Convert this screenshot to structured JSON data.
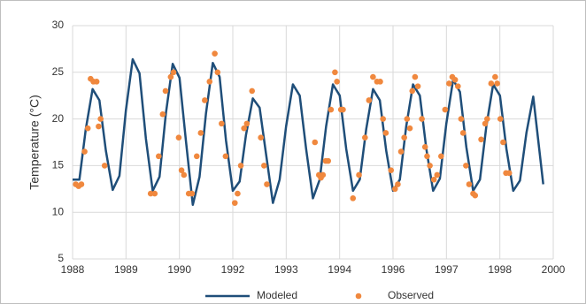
{
  "chart_data": {
    "type": "line",
    "ylabel": "Temperature (°C)",
    "xlim": [
      1988,
      2000
    ],
    "xticks": [
      {
        "value": 1988,
        "label": "1988"
      },
      {
        "value": 1989.333,
        "label": "1989"
      },
      {
        "value": 1990.667,
        "label": "1990"
      },
      {
        "value": 1992,
        "label": "1992"
      },
      {
        "value": 1993.333,
        "label": "1993"
      },
      {
        "value": 1994.667,
        "label": "1994"
      },
      {
        "value": 1996,
        "label": "1996"
      },
      {
        "value": 1997.333,
        "label": "1997"
      },
      {
        "value": 1998.667,
        "label": "1998"
      },
      {
        "value": 2000,
        "label": "2000"
      }
    ],
    "ylim": [
      5,
      30
    ],
    "yticks": [
      5,
      10,
      15,
      20,
      25,
      30
    ],
    "grid": true,
    "legend": "bottom",
    "series": [
      {
        "name": "Modeled",
        "type": "line",
        "color": "#1f4e79",
        "x": [
          1988.0,
          1988.17,
          1988.33,
          1988.5,
          1988.67,
          1988.83,
          1989.0,
          1989.17,
          1989.33,
          1989.5,
          1989.67,
          1989.83,
          1990.0,
          1990.17,
          1990.33,
          1990.5,
          1990.67,
          1990.83,
          1991.0,
          1991.17,
          1991.33,
          1991.5,
          1991.67,
          1991.83,
          1992.0,
          1992.17,
          1992.33,
          1992.5,
          1992.67,
          1992.83,
          1993.0,
          1993.17,
          1993.33,
          1993.5,
          1993.67,
          1993.83,
          1994.0,
          1994.17,
          1994.33,
          1994.5,
          1994.67,
          1994.83,
          1995.0,
          1995.17,
          1995.33,
          1995.5,
          1995.67,
          1995.83,
          1996.0,
          1996.17,
          1996.33,
          1996.5,
          1996.67,
          1996.83,
          1997.0,
          1997.17,
          1997.33,
          1997.5,
          1997.67,
          1997.83,
          1998.0,
          1998.17,
          1998.33,
          1998.5,
          1998.67,
          1998.83,
          1999.0,
          1999.17,
          1999.33,
          1999.5,
          1999.75
        ],
        "values": [
          13.5,
          13.5,
          18.9,
          23.2,
          22.0,
          16.6,
          12.4,
          13.9,
          20.9,
          26.4,
          24.9,
          17.9,
          12.3,
          13.8,
          20.6,
          25.9,
          24.4,
          17.6,
          10.8,
          13.8,
          20.6,
          26.0,
          24.5,
          17.7,
          12.3,
          13.3,
          18.3,
          22.2,
          21.2,
          16.2,
          11.0,
          13.5,
          19.2,
          23.7,
          22.5,
          16.8,
          11.5,
          13.5,
          19.2,
          23.7,
          22.5,
          16.8,
          12.3,
          13.5,
          18.9,
          23.2,
          22.0,
          16.6,
          12.3,
          13.5,
          19.2,
          23.7,
          22.5,
          16.8,
          12.3,
          13.6,
          19.5,
          24.2,
          22.9,
          17.0,
          12.3,
          13.5,
          19.2,
          23.7,
          22.5,
          16.8,
          12.3,
          13.4,
          18.5,
          22.4,
          13.0
        ]
      },
      {
        "name": "Observed",
        "type": "scatter",
        "color": "#f0883e",
        "x": [
          1988.08,
          1988.15,
          1988.22,
          1988.3,
          1988.38,
          1988.45,
          1988.52,
          1988.6,
          1988.65,
          1988.7,
          1988.8,
          1989.95,
          1990.05,
          1990.15,
          1990.25,
          1990.32,
          1990.45,
          1990.52,
          1990.65,
          1990.72,
          1990.78,
          1990.9,
          1990.98,
          1991.1,
          1991.2,
          1991.3,
          1991.42,
          1991.55,
          1991.62,
          1991.72,
          1991.82,
          1992.05,
          1992.12,
          1992.2,
          1992.28,
          1992.35,
          1992.48,
          1992.7,
          1992.78,
          1992.85,
          1994.05,
          1994.15,
          1994.2,
          1994.25,
          1994.32,
          1994.38,
          1994.45,
          1994.55,
          1994.6,
          1994.7,
          1994.75,
          1995.0,
          1995.15,
          1995.3,
          1995.4,
          1995.5,
          1995.6,
          1995.68,
          1995.75,
          1995.82,
          1995.95,
          1996.05,
          1996.12,
          1996.2,
          1996.28,
          1996.35,
          1996.42,
          1996.48,
          1996.55,
          1996.62,
          1996.72,
          1996.8,
          1996.85,
          1996.92,
          1997.02,
          1997.1,
          1997.2,
          1997.3,
          1997.4,
          1997.48,
          1997.55,
          1997.62,
          1997.7,
          1997.75,
          1997.82,
          1997.9,
          1998.0,
          1998.05,
          1998.2,
          1998.3,
          1998.35,
          1998.45,
          1998.55,
          1998.6,
          1998.68,
          1998.75,
          1998.82,
          1998.9
        ],
        "values": [
          13,
          12.8,
          13,
          16.5,
          19,
          24.3,
          24,
          24,
          19.2,
          20,
          15,
          12,
          12,
          16,
          20.5,
          23,
          24.5,
          25,
          18,
          14.5,
          14,
          12,
          12,
          16,
          18.5,
          22,
          24,
          27,
          25,
          19.5,
          16,
          11,
          12,
          15,
          19,
          19.5,
          23,
          18,
          15,
          13,
          17.5,
          14,
          13.7,
          14,
          15.5,
          15.5,
          21,
          25,
          24,
          21,
          21,
          11.5,
          14,
          18,
          22,
          24.5,
          24,
          24,
          20,
          18.5,
          14.5,
          12.5,
          13,
          16.5,
          18,
          20,
          19,
          23,
          24.5,
          23.5,
          20,
          17,
          16,
          15,
          13.5,
          14,
          16,
          21,
          23.8,
          24.5,
          24.2,
          23.5,
          20,
          18.5,
          15,
          13,
          12,
          11.8,
          17.8,
          19.5,
          20,
          23.8,
          24.5,
          23.8,
          20,
          17.5,
          14.2,
          14.2
        ]
      }
    ]
  }
}
